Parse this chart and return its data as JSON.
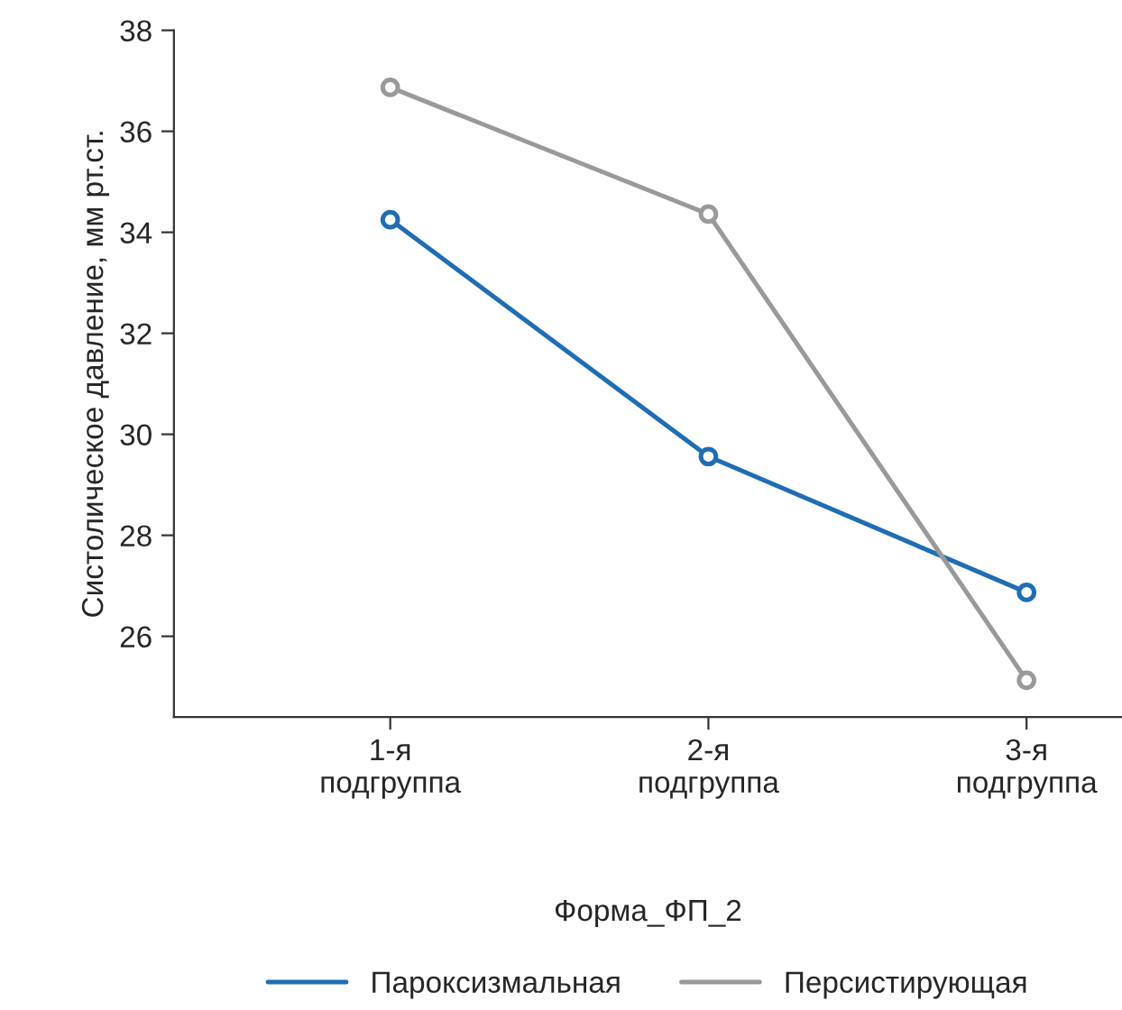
{
  "chart_data": {
    "type": "line",
    "ylabel": "Систолическое давление, мм рт.ст.",
    "xlabel": "Форма_ФП_2",
    "categories": [
      "1-я\nподгруппа",
      "2-я\nподгруппа",
      "3-я\nподгруппа"
    ],
    "series": [
      {
        "name": "Пароксизмальная",
        "color": "#1f6db3",
        "values": [
          34.25,
          29.56,
          26.87
        ]
      },
      {
        "name": "Персистирующая",
        "color": "#999999",
        "values": [
          36.87,
          34.36,
          25.13
        ]
      }
    ],
    "ylim": [
      24.4,
      38
    ],
    "yticks": [
      26,
      28,
      30,
      32,
      34,
      36,
      38
    ],
    "marker": "circle",
    "line_style": "solid",
    "grid": false,
    "legend": "bottom"
  }
}
